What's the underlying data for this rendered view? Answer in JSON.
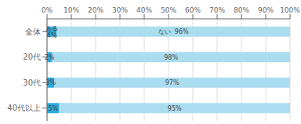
{
  "chart_data": {
    "type": "bar",
    "orientation": "horizontal",
    "stacked": true,
    "categories": [
      "全体",
      "20代",
      "30代",
      "40代以上"
    ],
    "series": [
      {
        "color": "#2eaadc",
        "values": [
          4,
          2,
          3,
          5
        ],
        "value_labels": [
          "ある\n4%",
          "2%",
          "3%",
          "5%"
        ]
      },
      {
        "color": "#aaddf0",
        "values": [
          96,
          98,
          97,
          95
        ],
        "value_labels": [
          "ない  96%",
          "98%",
          "97%",
          "95%"
        ]
      }
    ],
    "xlim": [
      0,
      100
    ],
    "xticks": [
      {
        "value": 0,
        "label": "0%"
      },
      {
        "value": 10,
        "label": "10%"
      },
      {
        "value": 20,
        "label": "20%"
      },
      {
        "value": 30,
        "label": "30%"
      },
      {
        "value": 40,
        "label": "40%"
      },
      {
        "value": 50,
        "label": "50%"
      },
      {
        "value": 60,
        "label": "60%"
      },
      {
        "value": 70,
        "label": "70%"
      },
      {
        "value": 80,
        "label": "80%"
      },
      {
        "value": 90,
        "label": "90%"
      },
      {
        "value": 100,
        "label": "100%"
      }
    ],
    "grid": true,
    "data_labels": true
  }
}
